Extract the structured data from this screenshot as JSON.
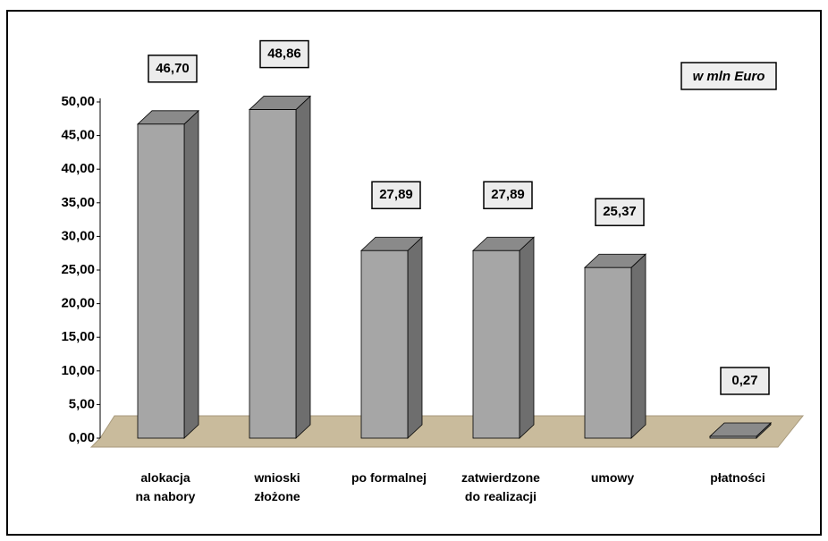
{
  "chart_data": {
    "type": "bar3d",
    "annotation": "w mln Euro",
    "categories": [
      "alokacja\nna nabory",
      "wnioski\nzłożone",
      "po formalnej",
      "zatwierdzone\ndo realizacji",
      "umowy",
      "płatności"
    ],
    "values": [
      46.7,
      48.86,
      27.89,
      27.89,
      25.37,
      0.27
    ],
    "value_labels": [
      "46,70",
      "48,86",
      "27,89",
      "27,89",
      "25,37",
      "0,27"
    ],
    "color": "#a6a6a6",
    "ylim": [
      0,
      50
    ],
    "yticks": [
      {
        "value": 0,
        "label": "0,00"
      },
      {
        "value": 5,
        "label": "5,00"
      },
      {
        "value": 10,
        "label": "10,00"
      },
      {
        "value": 15,
        "label": "15,00"
      },
      {
        "value": 20,
        "label": "20,00"
      },
      {
        "value": 25,
        "label": "25,00"
      },
      {
        "value": 30,
        "label": "30,00"
      },
      {
        "value": 35,
        "label": "35,00"
      },
      {
        "value": 40,
        "label": "40,00"
      },
      {
        "value": 45,
        "label": "45,00"
      },
      {
        "value": 50,
        "label": "50,00"
      }
    ]
  }
}
